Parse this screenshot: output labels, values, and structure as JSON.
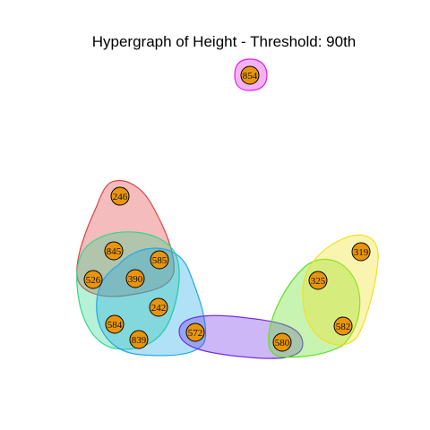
{
  "title": "Hypergraph of Height - Threshold: 90th",
  "node_fill_color": "#e8950c",
  "nodes": [
    {
      "id": "n854",
      "label": "854"
    },
    {
      "id": "n246",
      "label": "246"
    },
    {
      "id": "n845",
      "label": "845"
    },
    {
      "id": "n585",
      "label": "585"
    },
    {
      "id": "n526",
      "label": "526"
    },
    {
      "id": "n390",
      "label": "390"
    },
    {
      "id": "n242",
      "label": "242"
    },
    {
      "id": "n584",
      "label": "584"
    },
    {
      "id": "n839",
      "label": "839"
    },
    {
      "id": "n572",
      "label": "572"
    },
    {
      "id": "n580",
      "label": "580"
    },
    {
      "id": "n319",
      "label": "319"
    },
    {
      "id": "n325",
      "label": "325"
    },
    {
      "id": "n582",
      "label": "582"
    }
  ],
  "hyperedges": [
    {
      "id": "e-magenta",
      "color": "#e020e0",
      "members": [
        "854"
      ]
    },
    {
      "id": "e-red",
      "color": "#e04040",
      "members": [
        "246",
        "845",
        "585",
        "526",
        "390"
      ]
    },
    {
      "id": "e-green",
      "color": "#30d890",
      "members": [
        "845",
        "585",
        "526",
        "390",
        "584",
        "839",
        "242"
      ]
    },
    {
      "id": "e-blue",
      "color": "#20a8e8",
      "members": [
        "585",
        "390",
        "242",
        "584",
        "839",
        "572"
      ]
    },
    {
      "id": "e-purple",
      "color": "#7030e8",
      "members": [
        "572",
        "580"
      ]
    },
    {
      "id": "e-lime",
      "color": "#60e020",
      "members": [
        "580",
        "325",
        "582"
      ]
    },
    {
      "id": "e-yellow",
      "color": "#f0e020",
      "members": [
        "319",
        "325",
        "582"
      ]
    }
  ]
}
